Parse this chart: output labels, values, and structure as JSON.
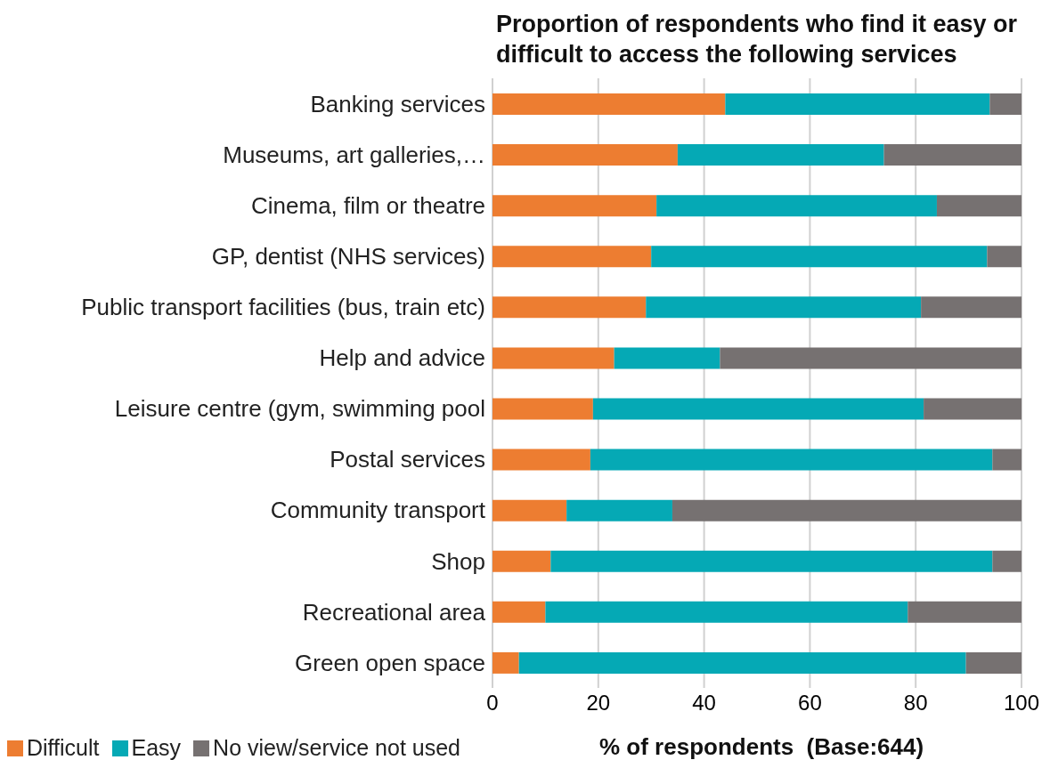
{
  "chart_data": {
    "type": "bar",
    "orientation": "horizontal",
    "stacked": true,
    "title": "Proportion of respondents who find it easy or difficult to access the following services",
    "xlabel": "% of respondents  (Base:644)",
    "categories": [
      "Banking services",
      "Museums, art galleries,…",
      "Cinema, film or theatre",
      "GP, dentist (NHS services)",
      "Public transport facilities (bus, train etc)",
      "Help and advice",
      "Leisure centre (gym, swimming pool",
      "Postal services",
      "Community transport",
      "Shop",
      "Recreational area",
      "Green open space"
    ],
    "series": [
      {
        "name": "Difficult",
        "color": "#ed7d31",
        "values": [
          44,
          35,
          31,
          30,
          29,
          23,
          19,
          18.5,
          14,
          11,
          10,
          5
        ]
      },
      {
        "name": "Easy",
        "color": "#05a9b5",
        "values": [
          50,
          39,
          53,
          63.5,
          52,
          20,
          62.5,
          76,
          20,
          83.5,
          68.5,
          84.5
        ]
      },
      {
        "name": "No view/service not used",
        "color": "#767171",
        "values": [
          6,
          26,
          16,
          6.5,
          19,
          57,
          18.5,
          5.5,
          66,
          5.5,
          21.5,
          10.5
        ]
      }
    ],
    "xlim": [
      0,
      100
    ],
    "xticks": [
      0,
      20,
      40,
      60,
      80,
      100
    ],
    "grid": "x",
    "legend": "bottom left"
  }
}
